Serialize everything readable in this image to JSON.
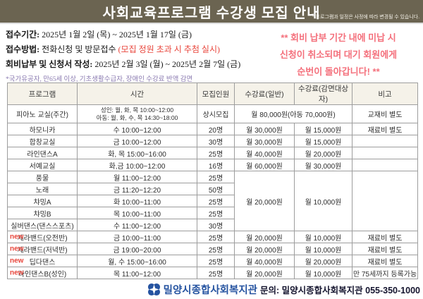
{
  "header": {
    "title": "사회교육프로그램  수강생 모집 안내",
    "note": "* 프로그램과 일정은 사정에 따라 변경될 수 있습니다."
  },
  "info": {
    "period": {
      "label": "접수기간:",
      "value": "2025년 1월 2일 (목) ~ 2025년 1월 17일 (금)"
    },
    "method": {
      "label": "접수방법:",
      "value": "전화신청 및 방문접수 ",
      "highlight": "(모집 정원 초과 시 추첨 실시)"
    },
    "payment": {
      "label": "회비납부 및 신청서 작성:",
      "value": "2025년 2월 3일 (월) ~ 2025년 2월 7일 (금)"
    },
    "discount_note": "*국가유공자, 만65세 이상, 기초생활수급자, 장애인 수강료 반액 감면"
  },
  "notice": {
    "lines": [
      "** 회비 납부 기간 내에 미납 시",
      "신청이 취소되며 대기 회원에게",
      "순번이 돌아갑니다! **"
    ]
  },
  "table": {
    "columns": [
      "프로그램",
      "시간",
      "모집인원",
      "수강료(일반)",
      "수강료(감면대상자)",
      "비고"
    ],
    "new_label": "new",
    "rows": [
      {
        "program": "피아노 교실(주간)",
        "time": [
          "성인: 월, 화, 목 10:00~12:00",
          "아동: 월, 화, 수, 목 14:30~18:00"
        ],
        "capacity": "상시모집",
        "fee_merged": "월 80,000원(아동 70,000원)",
        "note": "교재비 별도",
        "is_new": false
      },
      {
        "program": "하모니카",
        "time": [
          "수 10:00~12:00"
        ],
        "capacity": "20명",
        "fee_general": "월 30,000원",
        "fee_reduced": "월 15,000원",
        "note": "재료비 별도",
        "is_new": false
      },
      {
        "program": "합창교실",
        "time": [
          "금 10:00~12:00"
        ],
        "capacity": "30명",
        "fee_general": "월 30,000원",
        "fee_reduced": "월 15,000원",
        "note": "",
        "is_new": false
      },
      {
        "program": "라인댄스A",
        "time": [
          "화, 목 15:00~16:00"
        ],
        "capacity": "25명",
        "fee_general": "월 40,000원",
        "fee_reduced": "월 20,000원",
        "note": "",
        "is_new": false
      },
      {
        "program": "서예교실",
        "time": [
          "화,금 10:00~12:00"
        ],
        "capacity": "16명",
        "fee_general": "월 60,000원",
        "fee_reduced": "월 30,000원",
        "note": "",
        "is_new": false
      },
      {
        "program": "풍물",
        "time": [
          "월 11:00~12:00"
        ],
        "capacity": "25명",
        "fee_group": {
          "general": "월 20,000원",
          "reduced": "월 10,000원",
          "note": "",
          "span": 5
        },
        "is_new": false
      },
      {
        "program": "노래",
        "time": [
          "금 11:20~12:20"
        ],
        "capacity": "50명",
        "in_group": true,
        "is_new": false
      },
      {
        "program": "챠밍A",
        "time": [
          "화 10:00~11:00"
        ],
        "capacity": "25명",
        "in_group": true,
        "is_new": false
      },
      {
        "program": "챠밍B",
        "time": [
          "목 10:00~11:00"
        ],
        "capacity": "25명",
        "in_group": true,
        "is_new": false
      },
      {
        "program": "실버댄스(댄스스포츠)",
        "time": [
          "수 11:00~12:00"
        ],
        "capacity": "30명",
        "in_group": true,
        "is_new": false
      },
      {
        "program": "세라밴드(오전반)",
        "time": [
          "금 10:00~11:00"
        ],
        "capacity": "25명",
        "fee_general": "월 20,000원",
        "fee_reduced": "월 10,000원",
        "note": "재료비 별도",
        "is_new": true
      },
      {
        "program": "세라밴드(저녁반)",
        "time": [
          "금 19:00~20:00"
        ],
        "capacity": "25명",
        "fee_general": "월 20,000원",
        "fee_reduced": "월 10,000원",
        "note": "재료비 별도",
        "is_new": true
      },
      {
        "program": "딥다댄스",
        "time": [
          "월, 수 15:00~16:00"
        ],
        "capacity": "25명",
        "fee_general": "월 40,000원",
        "fee_reduced": "월 20,000원",
        "note": "재료비 별도",
        "is_new": true
      },
      {
        "program": "라인댄스B(성인)",
        "time": [
          "목 11:00~12:00"
        ],
        "capacity": "25명",
        "fee_general": "월 20,000원",
        "fee_reduced": "월 10,000원",
        "note": "만 75세까지 등록가능",
        "is_new": true
      }
    ]
  },
  "footer": {
    "org": "밀양시종합사회복지관",
    "contact": "문의: 밀양시종합사회복지관 055-350-1000"
  },
  "colors": {
    "header_bg": "#6b6451",
    "accent_red": "#e8463c",
    "accent_pink": "#f4707c",
    "note_purple": "#8a7ab0",
    "brand_blue": "#2553a0",
    "table_header_bg": "#f5f2e9"
  }
}
